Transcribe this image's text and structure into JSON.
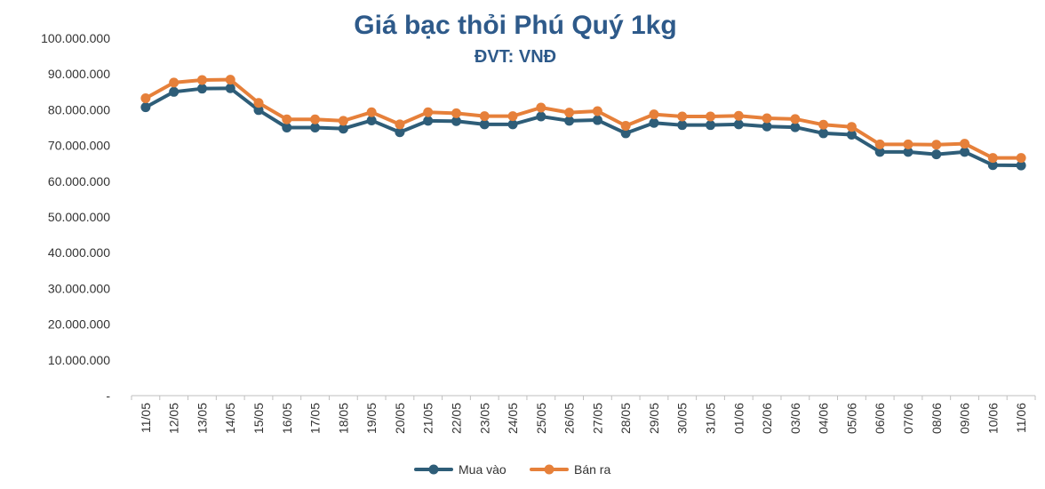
{
  "chart_data": {
    "type": "line",
    "title": "Giá bạc thỏi Phú Quý 1kg",
    "subtitle": "ĐVT: VNĐ",
    "xlabel": "",
    "ylabel": "",
    "ylim": [
      0,
      100000000
    ],
    "y_ticks": [
      0,
      10000000,
      20000000,
      30000000,
      40000000,
      50000000,
      60000000,
      70000000,
      80000000,
      90000000,
      100000000
    ],
    "y_tick_labels": [
      "-",
      "10.000.000",
      "20.000.000",
      "30.000.000",
      "40.000.000",
      "50.000.000",
      "60.000.000",
      "70.000.000",
      "80.000.000",
      "90.000.000",
      "100.000.000"
    ],
    "grid": false,
    "legend_position": "bottom",
    "categories": [
      "11/05",
      "12/05",
      "13/05",
      "14/05",
      "15/05",
      "16/05",
      "17/05",
      "18/05",
      "19/05",
      "20/05",
      "21/05",
      "22/05",
      "23/05",
      "24/05",
      "25/05",
      "26/05",
      "27/05",
      "28/05",
      "29/05",
      "30/05",
      "31/05",
      "01/06",
      "02/06",
      "03/06",
      "04/06",
      "05/06",
      "06/06",
      "07/06",
      "08/06",
      "09/06",
      "10/06",
      "11/06"
    ],
    "series": [
      {
        "name": "Mua vào",
        "color": "#2e5d78",
        "values": [
          80700000,
          85000000,
          85900000,
          86000000,
          79900000,
          75000000,
          75000000,
          74700000,
          77000000,
          73700000,
          76900000,
          76800000,
          75900000,
          75900000,
          78100000,
          76900000,
          77100000,
          73400000,
          76300000,
          75700000,
          75700000,
          75900000,
          75300000,
          75100000,
          73400000,
          73000000,
          68200000,
          68200000,
          67500000,
          68200000,
          64500000,
          64400000
        ]
      },
      {
        "name": "Bán ra",
        "color": "#e6803a",
        "values": [
          83200000,
          87600000,
          88300000,
          88400000,
          81900000,
          77300000,
          77300000,
          76900000,
          79300000,
          75900000,
          79300000,
          79000000,
          78200000,
          78200000,
          80600000,
          79200000,
          79600000,
          75500000,
          78700000,
          78100000,
          78100000,
          78300000,
          77600000,
          77400000,
          75800000,
          75200000,
          70300000,
          70300000,
          70200000,
          70500000,
          66500000,
          66500000
        ]
      }
    ]
  }
}
